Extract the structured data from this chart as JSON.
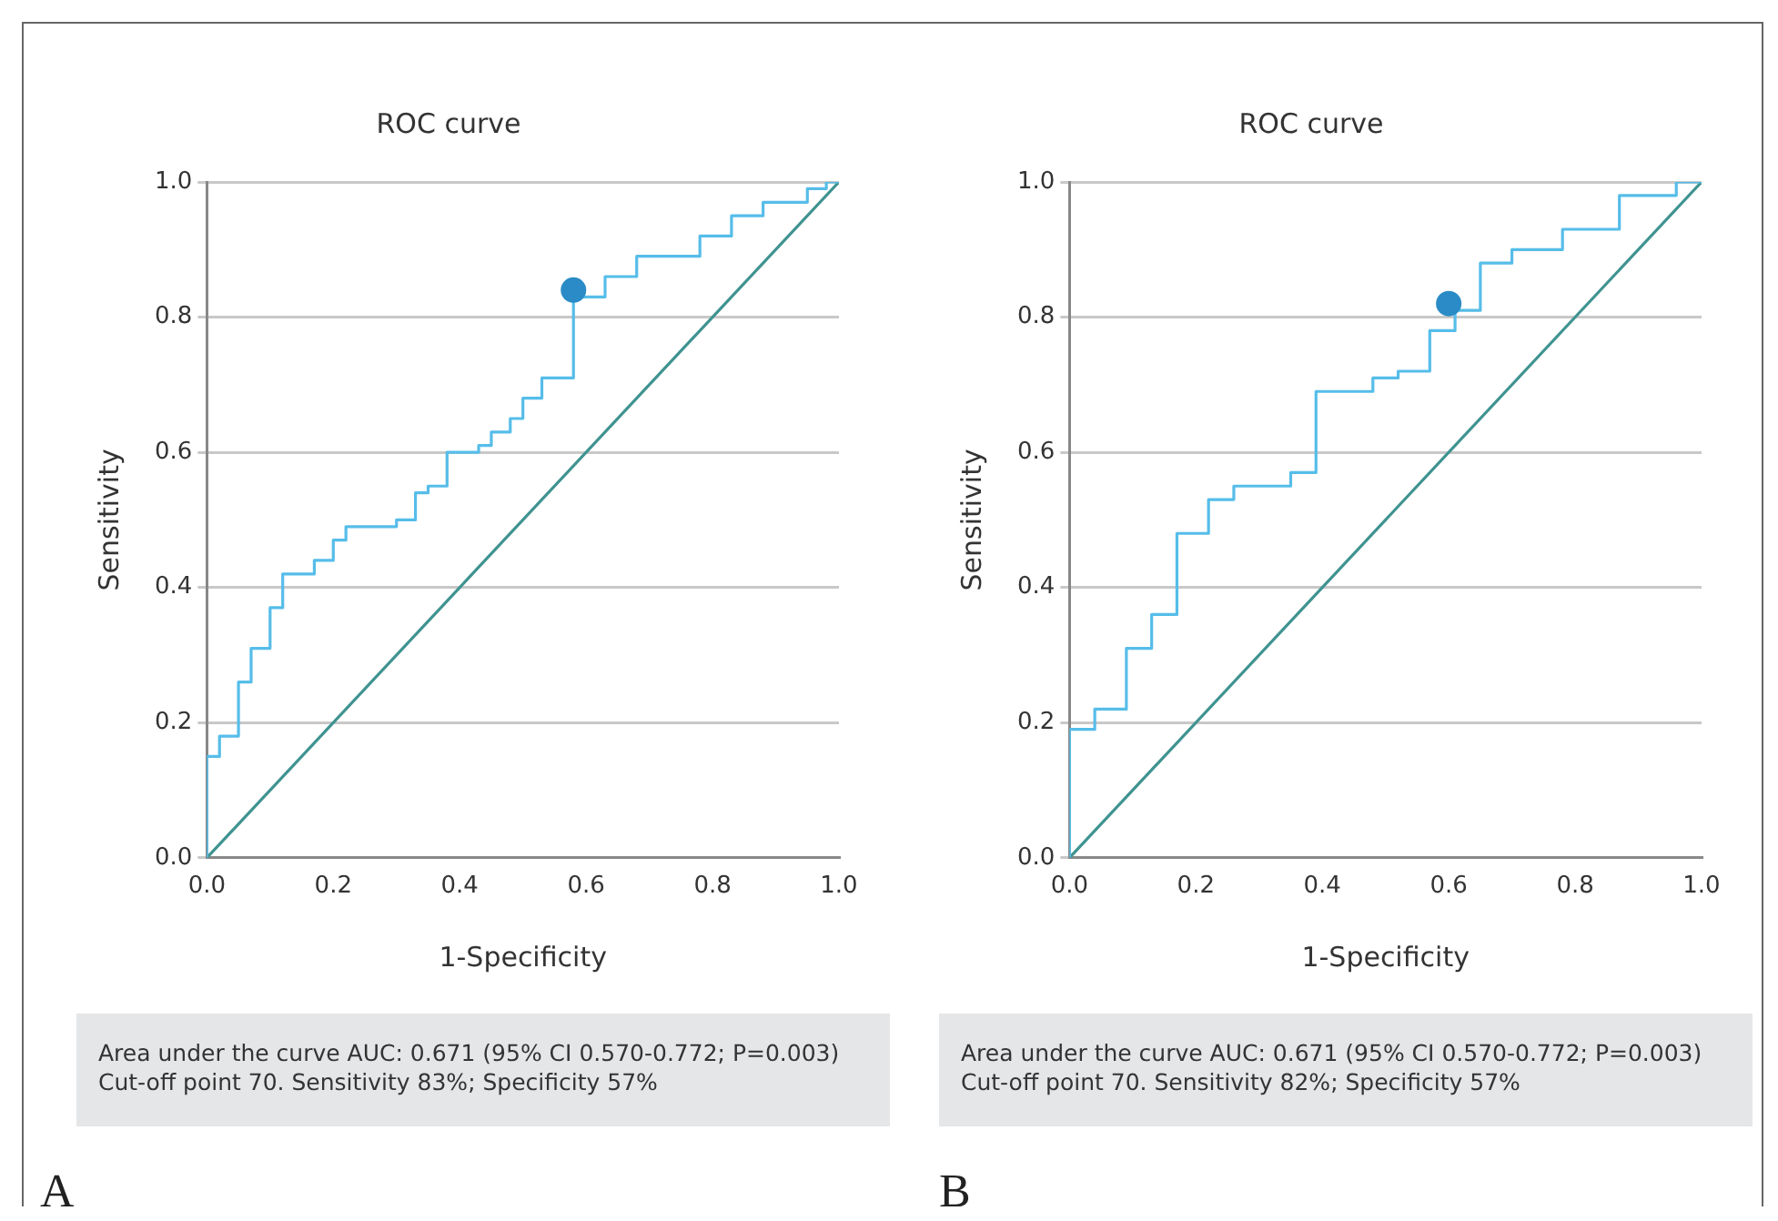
{
  "chart_data": [
    {
      "type": "line",
      "title": "ROC curve",
      "xlabel": "1-Specificity",
      "ylabel": "Sensitivity",
      "xlim": [
        0,
        1
      ],
      "ylim": [
        0,
        1
      ],
      "xticks": [
        {
          "value": 0,
          "label": "0.0"
        },
        {
          "value": 0.2,
          "label": "0.2"
        },
        {
          "value": 0.4,
          "label": "0.4"
        },
        {
          "value": 0.6,
          "label": "0.6"
        },
        {
          "value": 0.8,
          "label": "0.8"
        },
        {
          "value": 1,
          "label": "1.0"
        }
      ],
      "yticks": [
        {
          "value": 0,
          "label": "0.0"
        },
        {
          "value": 0.2,
          "label": "0.2"
        },
        {
          "value": 0.4,
          "label": "0.4"
        },
        {
          "value": 0.6,
          "label": "0.6"
        },
        {
          "value": 0.8,
          "label": "0.8"
        },
        {
          "value": 1,
          "label": "1.0"
        }
      ],
      "grid": "y",
      "legend": false,
      "series": [
        {
          "type": "line",
          "color": "#3f9390",
          "x": [
            0,
            1
          ],
          "values": [
            0,
            1
          ]
        },
        {
          "type": "step",
          "color": "#56bde9",
          "x": [
            0,
            0,
            0.02,
            0.05,
            0.07,
            0.1,
            0.12,
            0.17,
            0.2,
            0.22,
            0.3,
            0.33,
            0.35,
            0.38,
            0.43,
            0.45,
            0.48,
            0.5,
            0.53,
            0.58,
            0.63,
            0.68,
            0.78,
            0.83,
            0.88,
            0.95,
            0.98,
            1
          ],
          "values": [
            0,
            0.15,
            0.18,
            0.26,
            0.31,
            0.37,
            0.42,
            0.44,
            0.47,
            0.49,
            0.5,
            0.54,
            0.55,
            0.6,
            0.61,
            0.63,
            0.65,
            0.68,
            0.71,
            0.83,
            0.86,
            0.89,
            0.92,
            0.95,
            0.97,
            0.99,
            1,
            1
          ]
        },
        {
          "type": "scatter",
          "color": "#2a8bc6",
          "marker": "circle",
          "x": [
            0.58
          ],
          "values": [
            0.84
          ]
        }
      ],
      "annotations": [
        "Area under the curve AUC: 0.671 (95% CI 0.570-0.772; P=0.003)",
        "Cut-off point 70. Sensitivity 83%; Specificity 57%",
        "A"
      ]
    },
    {
      "type": "line",
      "title": "ROC curve",
      "xlabel": "1-Specificity",
      "ylabel": "Sensitivity",
      "xlim": [
        0,
        1
      ],
      "ylim": [
        0,
        1
      ],
      "xticks": [
        {
          "value": 0,
          "label": "0.0"
        },
        {
          "value": 0.2,
          "label": "0.2"
        },
        {
          "value": 0.4,
          "label": "0.4"
        },
        {
          "value": 0.6,
          "label": "0.6"
        },
        {
          "value": 0.8,
          "label": "0.8"
        },
        {
          "value": 1,
          "label": "1.0"
        }
      ],
      "yticks": [
        {
          "value": 0,
          "label": "0.0"
        },
        {
          "value": 0.2,
          "label": "0.2"
        },
        {
          "value": 0.4,
          "label": "0.4"
        },
        {
          "value": 0.6,
          "label": "0.6"
        },
        {
          "value": 0.8,
          "label": "0.8"
        },
        {
          "value": 1,
          "label": "1.0"
        }
      ],
      "grid": "y",
      "legend": false,
      "series": [
        {
          "type": "line",
          "color": "#3f9390",
          "x": [
            0,
            1
          ],
          "values": [
            0,
            1
          ]
        },
        {
          "type": "step",
          "color": "#56bde9",
          "x": [
            0,
            0,
            0.04,
            0.09,
            0.13,
            0.17,
            0.22,
            0.26,
            0.35,
            0.39,
            0.48,
            0.52,
            0.57,
            0.61,
            0.65,
            0.7,
            0.78,
            0.87,
            0.96,
            1
          ],
          "values": [
            0,
            0.19,
            0.22,
            0.31,
            0.36,
            0.48,
            0.53,
            0.55,
            0.57,
            0.69,
            0.71,
            0.72,
            0.78,
            0.81,
            0.88,
            0.9,
            0.93,
            0.98,
            1,
            1
          ]
        },
        {
          "type": "scatter",
          "color": "#2a8bc6",
          "marker": "circle",
          "x": [
            0.6
          ],
          "values": [
            0.82
          ]
        }
      ],
      "annotations": [
        "Area under the curve AUC: 0.671 (95% CI 0.570-0.772; P=0.003)",
        "Cut-off point 70. Sensitivity 82%; Specificity 57%",
        "B"
      ]
    }
  ]
}
